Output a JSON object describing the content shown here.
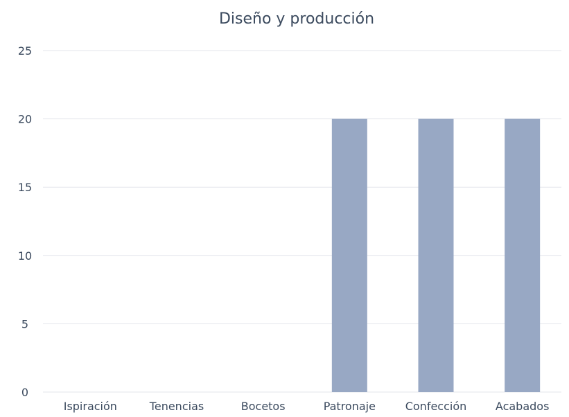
{
  "chart_data": {
    "type": "bar",
    "title": "Diseño y producción",
    "xlabel": "",
    "ylabel": "",
    "categories": [
      "Ispiración",
      "Tenencias",
      "Bocetos",
      "Patronaje",
      "Confección",
      "Acabados"
    ],
    "values": [
      0,
      0,
      0,
      20,
      20,
      20
    ],
    "ylim": [
      0,
      25
    ],
    "yticks": [
      0,
      5,
      10,
      15,
      20,
      25
    ],
    "grid": true,
    "bar_color": "#98a8c4",
    "legend": "none"
  }
}
